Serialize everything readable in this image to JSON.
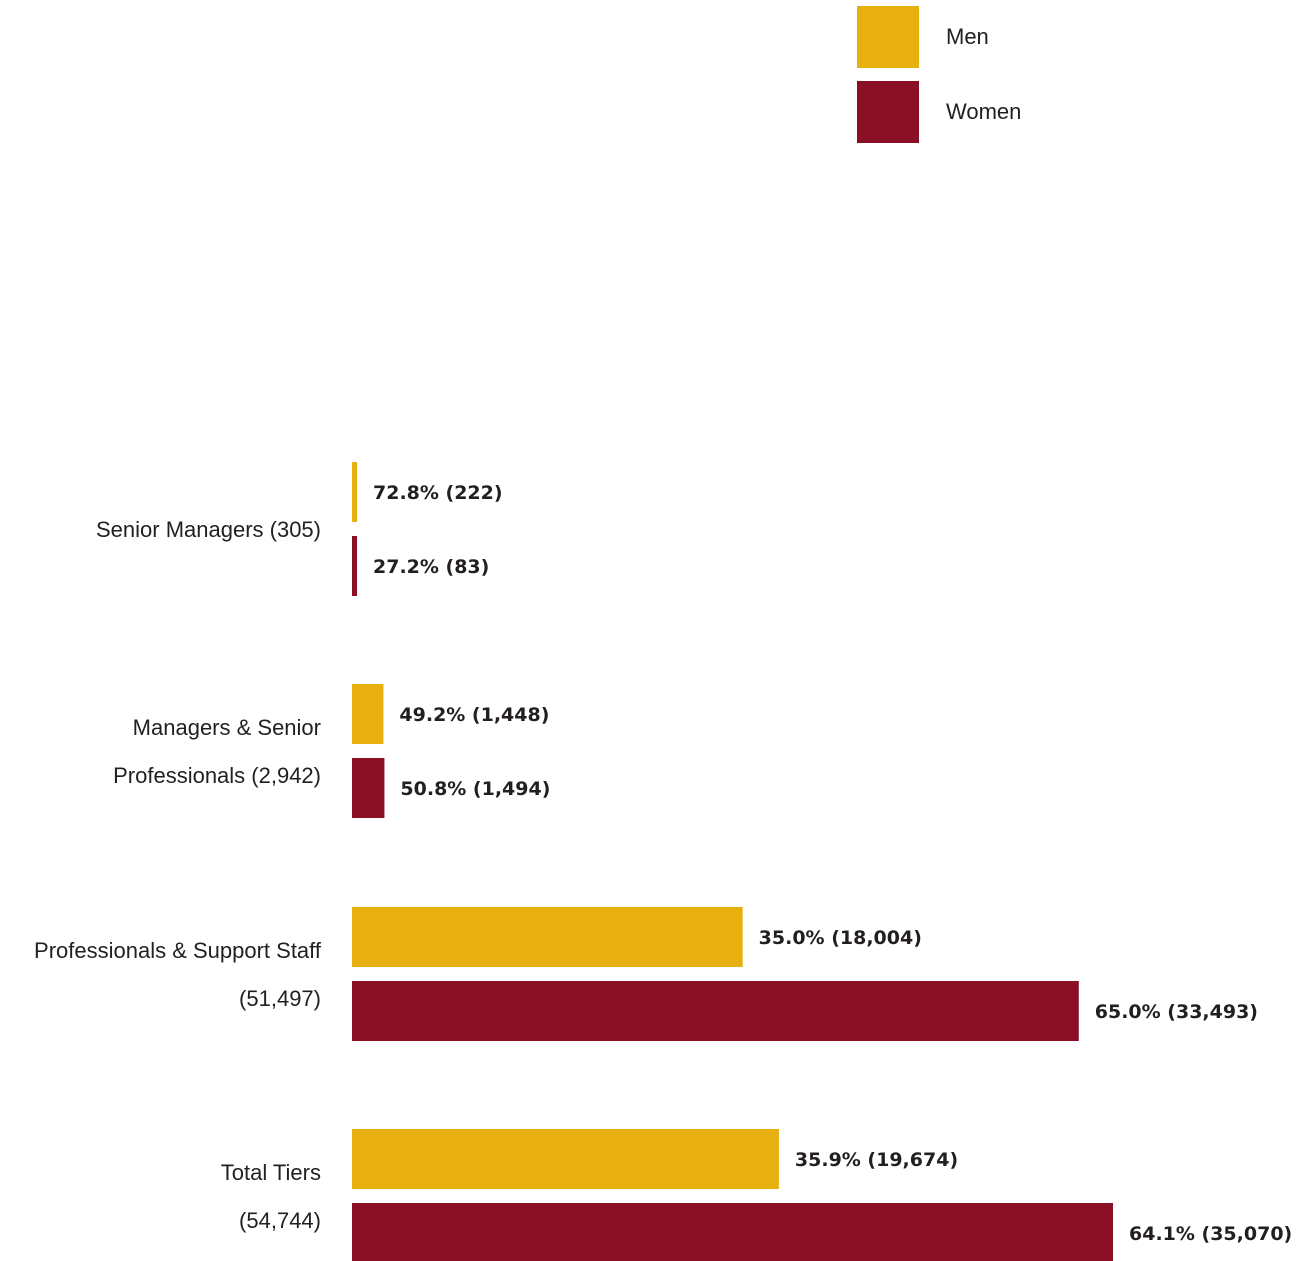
{
  "chart_data": {
    "type": "bar",
    "orientation": "horizontal",
    "categories": [
      [
        "Senior Managers (305)"
      ],
      [
        "Managers & Senior",
        "Professionals  (2,942)"
      ],
      [
        "Professionals & Support Staff",
        "(51,497)"
      ],
      [
        "Total Tiers",
        "(54,744)"
      ]
    ],
    "series": [
      {
        "name": "Men",
        "color": "#e8b00f",
        "values": [
          222,
          1448,
          18004,
          19674
        ],
        "labels": [
          "72.8% (222)",
          "49.2% (1,448)",
          "35.0% (18,004)",
          "35.9% (19,674)"
        ]
      },
      {
        "name": "Women",
        "color": "#8c1025",
        "values": [
          83,
          1494,
          33493,
          35070
        ],
        "labels": [
          "27.2% (83)",
          "50.8% (1,494)",
          "65.0% (33,493)",
          "64.1% (35,070)"
        ]
      }
    ],
    "xlim": [
      0,
      35070
    ],
    "grid": false,
    "legend": "top-right"
  }
}
